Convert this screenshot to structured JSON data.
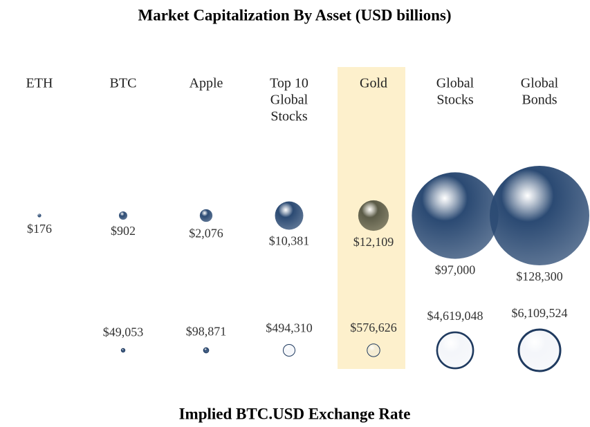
{
  "chart_data": [
    {
      "type": "bubble",
      "title": "Market Capitalization By Asset (USD billions)",
      "categories": [
        [
          "ETH"
        ],
        [
          "BTC"
        ],
        [
          "Apple"
        ],
        [
          "Top 10",
          "Global",
          "Stocks"
        ],
        [
          "Gold"
        ],
        [
          "Global",
          "Stocks"
        ],
        [
          "Global",
          "Bonds"
        ]
      ],
      "values": [
        176,
        902,
        2076,
        10381,
        12109,
        97000,
        128300
      ],
      "value_labels": [
        "$176",
        "$902",
        "$2,076",
        "$10,381",
        "$12,109",
        "$97,000",
        "$128,300"
      ],
      "colors": [
        "#2b4a73",
        "#2b4a73",
        "#2b4a73",
        "#2b4a73",
        "#5c5c48",
        "#2b4a73",
        "#2b4a73"
      ],
      "band_colors": [
        null,
        null,
        null,
        null,
        "#fdf0cc",
        null,
        null
      ],
      "label_colors": [
        "#333",
        "#333",
        "#333",
        "#333",
        "#9a8540",
        "#333",
        "#333"
      ]
    },
    {
      "type": "bubble",
      "title": "Implied BTC.USD Exchange Rate",
      "values": [
        null,
        49053,
        98871,
        494310,
        576626,
        4619048,
        6109524
      ],
      "value_labels": [
        null,
        "$49,053",
        "$98,871",
        "$494,310",
        "$576,626",
        "$4,619,048",
        "$6,109,524"
      ],
      "colors": [
        null,
        "#2b4a73",
        "#2b4a73",
        "#f4f6fa",
        "#f3ecd4",
        "#f4f6fa",
        "#f4f6fa"
      ],
      "stroke": "#1f3a5f",
      "label_colors": [
        null,
        "#333",
        "#333",
        "#333",
        "#9a8540",
        "#333",
        "#333"
      ]
    }
  ]
}
